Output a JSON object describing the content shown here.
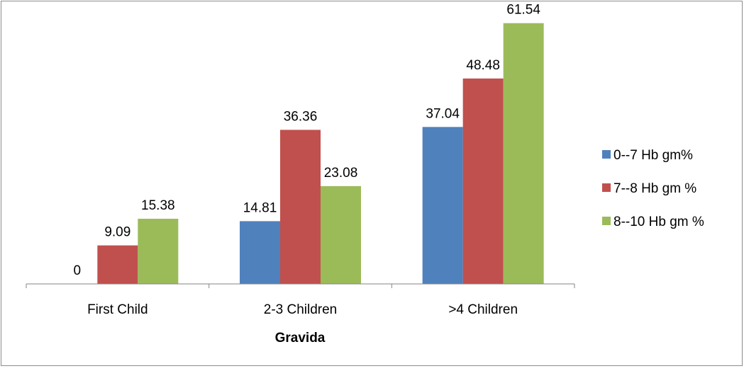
{
  "chart_data": {
    "type": "bar",
    "title": "",
    "xlabel": "Gravida",
    "ylabel": "",
    "categories": [
      "First Child",
      "2-3 Children",
      ">4 Children"
    ],
    "series": [
      {
        "name": "0--7 Hb gm%",
        "values": [
          0,
          14.81,
          37.04
        ],
        "labels": [
          "0",
          "14.81",
          "37.04"
        ],
        "color": "#4f81bd"
      },
      {
        "name": "7--8 Hb gm %",
        "values": [
          9.09,
          36.36,
          48.48
        ],
        "labels": [
          "9.09",
          "36.36",
          "48.48"
        ],
        "color": "#c0504d"
      },
      {
        "name": "8--10 Hb gm %",
        "values": [
          15.38,
          23.08,
          61.54
        ],
        "labels": [
          "15.38",
          "23.08",
          "61.54"
        ],
        "color": "#9bbb59"
      }
    ],
    "ylim": [
      0,
      65
    ],
    "grid": false,
    "y_axis_visible": false,
    "legend_position": "right"
  }
}
